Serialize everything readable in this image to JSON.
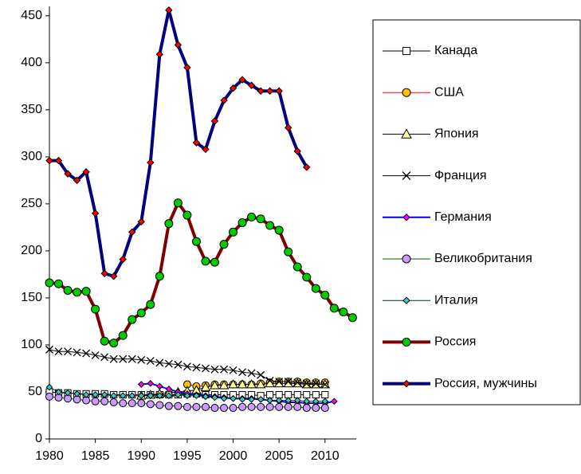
{
  "chart_data": {
    "type": "line",
    "x": [
      1980,
      1981,
      1982,
      1983,
      1984,
      1985,
      1986,
      1987,
      1988,
      1989,
      1990,
      1991,
      1992,
      1993,
      1994,
      1995,
      1996,
      1997,
      1998,
      1999,
      2000,
      2001,
      2002,
      2003,
      2004,
      2005,
      2006,
      2007,
      2008,
      2009,
      2010,
      2011,
      2012,
      2013
    ],
    "xlim": [
      1980,
      2013.4
    ],
    "xticks": [
      1980,
      1985,
      1990,
      1995,
      2000,
      2005,
      2010
    ],
    "ylim": [
      0,
      460
    ],
    "yticks": [
      0,
      50,
      100,
      150,
      200,
      250,
      300,
      350,
      400,
      450
    ],
    "grid": false,
    "legend": "right",
    "series": [
      {
        "name": "Канада",
        "color": "#000000",
        "marker": "square",
        "marker_color": "#ffffff",
        "width": 1,
        "values": [
          50,
          49,
          49,
          48,
          48,
          48,
          48,
          47,
          47,
          47,
          47,
          47,
          47,
          47,
          47,
          48,
          48,
          47,
          47,
          47,
          47,
          47,
          47,
          46,
          47,
          47,
          47,
          47,
          47,
          47,
          47,
          null,
          null,
          null
        ]
      },
      {
        "name": "США",
        "color": "#ff0000",
        "marker": "circle",
        "marker_color": "#ffc000",
        "width": 1,
        "values": [
          null,
          null,
          null,
          null,
          null,
          null,
          null,
          null,
          null,
          null,
          null,
          null,
          null,
          null,
          null,
          58,
          56,
          57,
          58,
          58,
          58,
          58,
          58,
          59,
          60,
          61,
          61,
          61,
          60,
          60,
          60,
          null,
          null,
          null
        ]
      },
      {
        "name": "Япония",
        "color": "#000000",
        "marker": "triangle",
        "marker_color": "#ffff99",
        "width": 1,
        "values": [
          null,
          null,
          null,
          null,
          null,
          null,
          null,
          null,
          null,
          null,
          46,
          47,
          48,
          49,
          50,
          51,
          52,
          55,
          57,
          57,
          58,
          58,
          58,
          58,
          59,
          59,
          59,
          59,
          58,
          58,
          58,
          null,
          null,
          null
        ]
      },
      {
        "name": "Франция",
        "color": "#000000",
        "marker": "x",
        "marker_color": "#000000",
        "width": 1,
        "values": [
          95,
          93,
          93,
          92,
          91,
          89,
          87,
          85,
          85,
          85,
          84,
          83,
          81,
          80,
          79,
          77,
          76,
          75,
          74,
          74,
          73,
          71,
          70,
          68,
          62,
          61,
          61,
          60,
          59,
          59,
          58,
          null,
          null,
          null
        ]
      },
      {
        "name": "Германия",
        "color": "#0000ff",
        "marker": "diamond",
        "marker_color": "#ff00ff",
        "width": 2,
        "values": [
          null,
          null,
          null,
          null,
          null,
          null,
          null,
          null,
          null,
          null,
          58,
          59,
          56,
          53,
          50,
          48,
          47,
          46,
          45,
          44,
          43,
          43,
          43,
          42,
          41,
          40,
          39,
          39,
          38,
          38,
          38,
          40,
          null,
          null
        ]
      },
      {
        "name": "Великобритания",
        "color": "#006600",
        "marker": "circle",
        "marker_color": "#cc99ff",
        "width": 1,
        "values": [
          45,
          44,
          43,
          42,
          41,
          40,
          40,
          39,
          38,
          38,
          38,
          37,
          36,
          35,
          35,
          34,
          34,
          34,
          33,
          33,
          33,
          34,
          34,
          34,
          34,
          34,
          34,
          34,
          33,
          33,
          33,
          null,
          null,
          null
        ]
      },
      {
        "name": "Италия",
        "color": "#003333",
        "marker": "diamond",
        "marker_color": "#33cccc",
        "width": 1,
        "values": [
          55,
          50,
          49,
          48,
          47,
          47,
          47,
          46,
          46,
          46,
          46,
          46,
          46,
          46,
          47,
          46,
          46,
          45,
          44,
          43,
          43,
          42,
          42,
          42,
          41,
          41,
          41,
          41,
          40,
          40,
          40,
          null,
          null,
          null
        ]
      },
      {
        "name": "Россия",
        "color": "#800000",
        "marker": "circle",
        "marker_color": "#00cc00",
        "width": 4,
        "values": [
          166,
          165,
          158,
          156,
          157,
          138,
          104,
          102,
          110,
          127,
          134,
          143,
          173,
          229,
          251,
          238,
          210,
          189,
          188,
          207,
          220,
          230,
          236,
          234,
          227,
          222,
          199,
          183,
          172,
          160,
          153,
          139,
          135,
          129
        ]
      },
      {
        "name": "Россия, мужчины",
        "color": "#000080",
        "marker": "diamond",
        "marker_color": "#ff0000",
        "width": 4,
        "values": [
          296,
          296,
          282,
          275,
          284,
          240,
          176,
          173,
          191,
          220,
          231,
          294,
          409,
          456,
          419,
          395,
          315,
          308,
          338,
          360,
          373,
          382,
          376,
          370,
          370,
          370,
          331,
          306,
          289,
          null,
          null,
          null,
          null,
          null
        ]
      }
    ]
  }
}
